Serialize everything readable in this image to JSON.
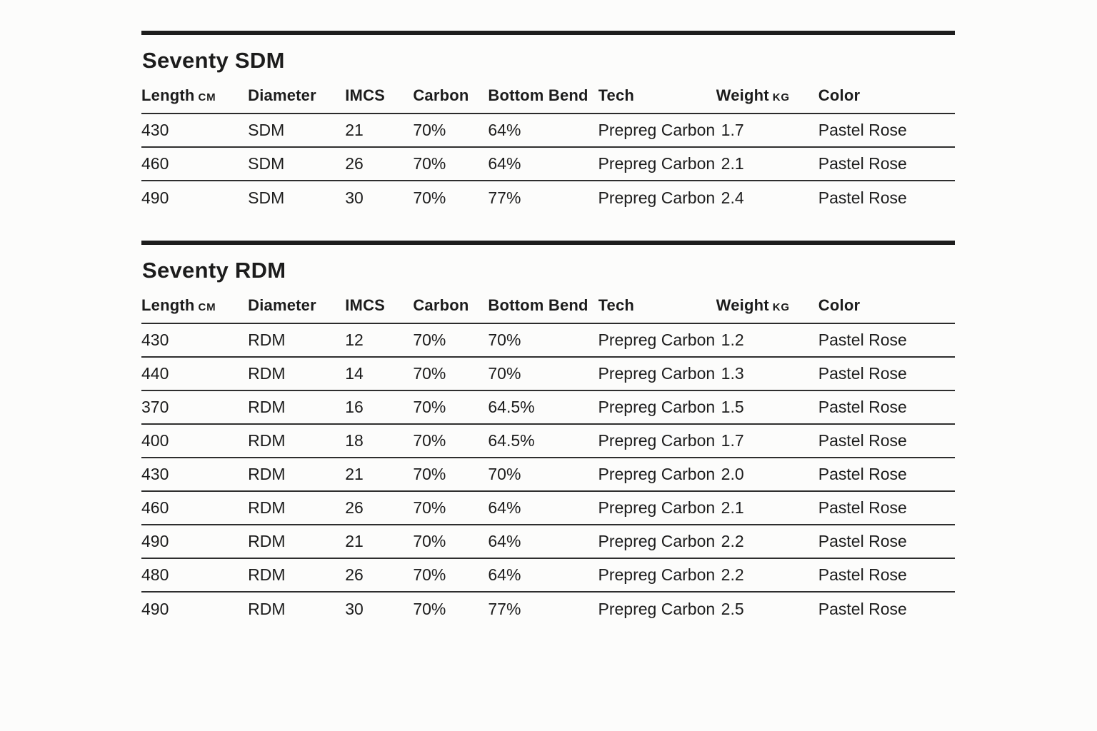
{
  "page": {
    "background_color": "#fcfcfb",
    "text_color": "#1c1c1c",
    "rule_color": "#1d1d1d"
  },
  "columns": [
    {
      "label": "Length",
      "unit": "CM"
    },
    {
      "label": "Diameter",
      "unit": ""
    },
    {
      "label": "IMCS",
      "unit": ""
    },
    {
      "label": "Carbon",
      "unit": ""
    },
    {
      "label": "Bottom Bend",
      "unit": ""
    },
    {
      "label": "Tech",
      "unit": ""
    },
    {
      "label": "Weight",
      "unit": "KG"
    },
    {
      "label": "Color",
      "unit": ""
    }
  ],
  "tables": [
    {
      "title": "Seventy SDM",
      "rows": [
        [
          "430",
          "SDM",
          "21",
          "70%",
          "64%",
          "Prepreg Carbon",
          "1.7",
          "Pastel Rose"
        ],
        [
          "460",
          "SDM",
          "26",
          "70%",
          "64%",
          "Prepreg Carbon",
          "2.1",
          "Pastel Rose"
        ],
        [
          "490",
          "SDM",
          "30",
          "70%",
          "77%",
          "Prepreg Carbon",
          "2.4",
          "Pastel Rose"
        ]
      ]
    },
    {
      "title": "Seventy RDM",
      "rows": [
        [
          "430",
          "RDM",
          "12",
          "70%",
          "70%",
          "Prepreg Carbon",
          "1.2",
          "Pastel Rose"
        ],
        [
          "440",
          "RDM",
          "14",
          "70%",
          "70%",
          "Prepreg Carbon",
          "1.3",
          "Pastel Rose"
        ],
        [
          "370",
          "RDM",
          "16",
          "70%",
          "64.5%",
          "Prepreg Carbon",
          "1.5",
          "Pastel Rose"
        ],
        [
          "400",
          "RDM",
          "18",
          "70%",
          "64.5%",
          "Prepreg Carbon",
          "1.7",
          "Pastel Rose"
        ],
        [
          "430",
          "RDM",
          "21",
          "70%",
          "70%",
          "Prepreg Carbon",
          "2.0",
          "Pastel Rose"
        ],
        [
          "460",
          "RDM",
          "26",
          "70%",
          "64%",
          "Prepreg Carbon",
          "2.1",
          "Pastel Rose"
        ],
        [
          "490",
          "RDM",
          "21",
          "70%",
          "64%",
          "Prepreg Carbon",
          "2.2",
          "Pastel Rose"
        ],
        [
          "480",
          "RDM",
          "26",
          "70%",
          "64%",
          "Prepreg Carbon",
          "2.2",
          "Pastel Rose"
        ],
        [
          "490",
          "RDM",
          "30",
          "70%",
          "77%",
          "Prepreg Carbon",
          "2.5",
          "Pastel Rose"
        ]
      ]
    }
  ]
}
